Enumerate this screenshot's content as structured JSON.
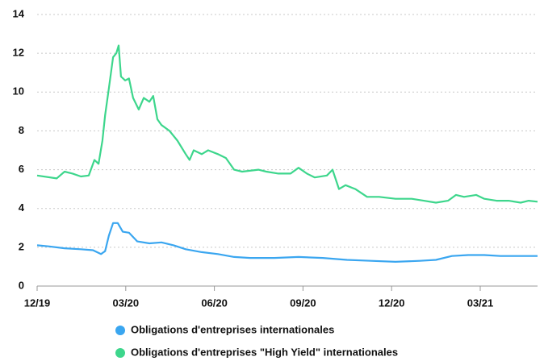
{
  "chart_data": {
    "type": "line",
    "xlim": [
      0,
      16.94
    ],
    "xticks": [
      {
        "value": 0,
        "label": "12/19"
      },
      {
        "value": 3,
        "label": "03/20"
      },
      {
        "value": 6,
        "label": "06/20"
      },
      {
        "value": 9,
        "label": "09/20"
      },
      {
        "value": 12,
        "label": "12/20"
      },
      {
        "value": 15,
        "label": "03/21"
      }
    ],
    "ylim": [
      0,
      14
    ],
    "yticks": [
      0,
      2,
      4,
      6,
      8,
      10,
      12,
      14
    ],
    "grid": true,
    "series": [
      {
        "name": "Obligations d'entreprises internationales",
        "color": "#3aa6f0",
        "x": [
          0,
          0.38,
          0.93,
          1.48,
          1.89,
          2.16,
          2.3,
          2.43,
          2.57,
          2.73,
          2.9,
          3.11,
          3.39,
          3.8,
          4.21,
          4.62,
          5.03,
          5.57,
          6.12,
          6.67,
          7.21,
          8.03,
          8.85,
          9.67,
          10.49,
          11.31,
          12.13,
          12.95,
          13.5,
          14.04,
          14.59,
          15.14,
          15.68,
          16.23,
          16.94
        ],
        "values": [
          2.1,
          2.05,
          1.95,
          1.9,
          1.85,
          1.65,
          1.8,
          2.6,
          3.25,
          3.25,
          2.8,
          2.75,
          2.3,
          2.2,
          2.25,
          2.1,
          1.9,
          1.75,
          1.65,
          1.5,
          1.45,
          1.45,
          1.5,
          1.45,
          1.35,
          1.3,
          1.25,
          1.3,
          1.35,
          1.55,
          1.6,
          1.6,
          1.55,
          1.55,
          1.55
        ]
      },
      {
        "name": "Obligations d'entreprises \"High Yield\" internationales",
        "color": "#3dd68c",
        "x": [
          0,
          0.66,
          0.93,
          1.2,
          1.48,
          1.75,
          1.94,
          2.08,
          2.21,
          2.3,
          2.43,
          2.57,
          2.68,
          2.76,
          2.84,
          2.98,
          3.11,
          3.25,
          3.44,
          3.61,
          3.8,
          3.93,
          4.07,
          4.21,
          4.48,
          4.75,
          5.03,
          5.16,
          5.3,
          5.57,
          5.79,
          6.12,
          6.39,
          6.67,
          6.94,
          7.49,
          7.76,
          8.17,
          8.58,
          8.85,
          9.13,
          9.4,
          9.81,
          10.0,
          10.22,
          10.44,
          10.77,
          11.17,
          11.58,
          12.13,
          12.68,
          13.09,
          13.5,
          13.91,
          14.18,
          14.45,
          14.86,
          15.14,
          15.55,
          15.96,
          16.37,
          16.64,
          16.94
        ],
        "values": [
          5.7,
          5.55,
          5.9,
          5.8,
          5.65,
          5.7,
          6.5,
          6.3,
          7.5,
          8.8,
          10.2,
          11.8,
          12,
          12.4,
          10.8,
          10.6,
          10.7,
          9.7,
          9.1,
          9.7,
          9.5,
          9.8,
          8.6,
          8.3,
          8.0,
          7.5,
          6.8,
          6.5,
          7.0,
          6.8,
          7.0,
          6.8,
          6.6,
          6.0,
          5.9,
          6.0,
          5.9,
          5.8,
          5.8,
          6.1,
          5.8,
          5.6,
          5.7,
          6.0,
          5.0,
          5.2,
          5.0,
          4.6,
          4.6,
          4.5,
          4.5,
          4.4,
          4.3,
          4.4,
          4.7,
          4.6,
          4.7,
          4.5,
          4.4,
          4.4,
          4.3,
          4.4,
          4.35
        ]
      }
    ]
  }
}
